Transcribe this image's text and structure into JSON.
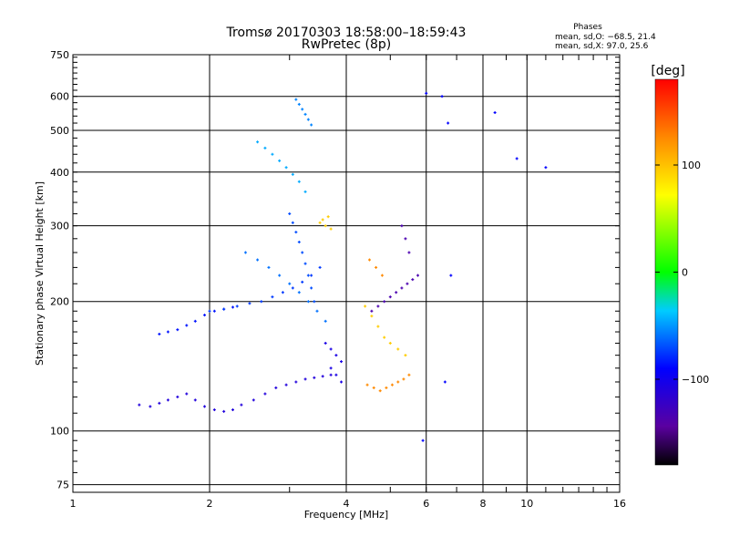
{
  "chart_data": {
    "type": "scatter",
    "title": "Tromsø 20170303 18:58:00–18:59:43",
    "subtitle": "RwPretec (8p)",
    "xlabel": "Frequency [MHz]",
    "ylabel": "Stationary phase Virtual Height [km]",
    "xscale": "log",
    "yscale": "log",
    "xlim": [
      1,
      16
    ],
    "ylim": [
      72,
      750
    ],
    "xticks": [
      1,
      2,
      4,
      6,
      8,
      10,
      16
    ],
    "xtick_labels": [
      "1",
      "2",
      "4",
      "6",
      "8",
      "10",
      "16"
    ],
    "yticks": [
      75,
      100,
      200,
      300,
      400,
      500,
      600,
      750
    ],
    "ytick_labels": [
      "75",
      "100",
      "200",
      "300",
      "400",
      "500",
      "600",
      "750"
    ],
    "grid": true,
    "stats": {
      "title": "Phases",
      "line_o": "mean, sd,O:  −68.5, 21.4",
      "line_x": "mean, sd,X:   97.0, 25.6"
    },
    "colorbar": {
      "label": "[deg]",
      "range": [
        -180,
        180
      ],
      "ticks": [
        100,
        0,
        -100
      ],
      "tick_labels": [
        "100",
        "0",
        "−100"
      ],
      "colormap": "rainbow"
    },
    "series": [
      {
        "name": "lower-trace",
        "phase": -110,
        "x": [
          1.4,
          1.48,
          1.55,
          1.62,
          1.7,
          1.78,
          1.86,
          1.95,
          2.05,
          2.15,
          2.25,
          2.35,
          2.5,
          2.65,
          2.8,
          2.95,
          3.1,
          3.25,
          3.4,
          3.55,
          3.7
        ],
        "y": [
          115,
          114,
          116,
          118,
          120,
          122,
          118,
          114,
          112,
          111,
          112,
          115,
          118,
          122,
          126,
          128,
          130,
          132,
          133,
          134,
          135
        ]
      },
      {
        "name": "low-band",
        "phase": -85,
        "x": [
          1.55,
          1.62,
          1.7,
          1.78,
          1.86,
          1.95,
          2.05,
          2.15,
          2.25
        ],
        "y": [
          168,
          170,
          172,
          176,
          180,
          186,
          190,
          192,
          194
        ]
      },
      {
        "name": "mid-band",
        "phase": -75,
        "x": [
          2.0,
          2.15,
          2.3,
          2.45,
          2.6,
          2.75,
          2.9,
          3.05,
          3.2,
          3.35,
          3.5
        ],
        "y": [
          190,
          192,
          195,
          198,
          200,
          205,
          210,
          215,
          222,
          230,
          240
        ]
      },
      {
        "name": "upper-trace",
        "phase": -45,
        "x": [
          2.55,
          2.65,
          2.75,
          2.85,
          2.95,
          3.05,
          3.15,
          3.25
        ],
        "y": [
          470,
          455,
          440,
          425,
          410,
          395,
          380,
          360
        ]
      },
      {
        "name": "high-cluster",
        "phase": -55,
        "x": [
          3.1,
          3.15,
          3.2,
          3.25,
          3.3,
          3.35
        ],
        "y": [
          590,
          575,
          560,
          545,
          530,
          515
        ]
      },
      {
        "name": "ridge",
        "phase": -60,
        "x": [
          2.4,
          2.55,
          2.7,
          2.85,
          3.0,
          3.15,
          3.3,
          3.45,
          3.6
        ],
        "y": [
          260,
          250,
          240,
          230,
          220,
          210,
          200,
          190,
          180
        ]
      },
      {
        "name": "mid-column",
        "phase": -70,
        "x": [
          3.0,
          3.05,
          3.1,
          3.15,
          3.2,
          3.25,
          3.3,
          3.35,
          3.4
        ],
        "y": [
          320,
          305,
          290,
          275,
          260,
          245,
          230,
          215,
          200
        ]
      },
      {
        "name": "x-mode-yellow",
        "phase": 95,
        "x": [
          3.5,
          3.55,
          3.6,
          3.65,
          3.7,
          4.4,
          4.55,
          4.7,
          4.85,
          5.0,
          5.2,
          5.4
        ],
        "y": [
          305,
          310,
          300,
          315,
          295,
          195,
          185,
          175,
          165,
          160,
          155,
          150
        ]
      },
      {
        "name": "x-mode-orange",
        "phase": 125,
        "x": [
          4.45,
          4.6,
          4.75,
          4.9,
          5.05,
          5.2,
          5.35,
          5.5,
          4.5,
          4.65,
          4.8
        ],
        "y": [
          128,
          126,
          124,
          126,
          128,
          130,
          132,
          135,
          250,
          240,
          230
        ]
      },
      {
        "name": "violet-trace",
        "phase": -135,
        "x": [
          4.55,
          4.7,
          4.85,
          5.0,
          5.15,
          5.3,
          5.45,
          5.6,
          5.75,
          5.3,
          5.4,
          5.5
        ],
        "y": [
          190,
          195,
          200,
          205,
          210,
          215,
          220,
          225,
          230,
          300,
          280,
          260
        ]
      },
      {
        "name": "blue-cluster",
        "phase": -105,
        "x": [
          3.6,
          3.7,
          3.8,
          3.9,
          3.7,
          3.8,
          3.9
        ],
        "y": [
          160,
          155,
          150,
          145,
          140,
          135,
          130
        ]
      },
      {
        "name": "scattered",
        "phase": -90,
        "x": [
          6.5,
          6.7,
          8.5,
          9.5,
          11.0,
          6.8,
          6.6,
          5.9,
          6.0
        ],
        "y": [
          600,
          520,
          550,
          430,
          410,
          230,
          130,
          95,
          610
        ]
      }
    ]
  }
}
